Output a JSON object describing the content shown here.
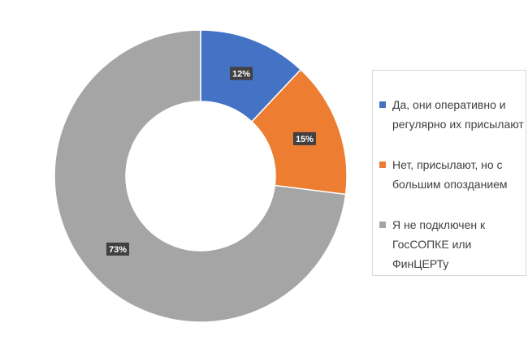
{
  "chart_data": {
    "type": "donut",
    "categories": [
      "Да, они оперативно и регулярно их присылают",
      "Нет, присылают, но с большим опозданием",
      "Я не подключен к ГосСОПКЕ или ФинЦЕРТу"
    ],
    "values": [
      12,
      15,
      73
    ],
    "value_labels": [
      "12%",
      "15%",
      "73%"
    ],
    "colors": [
      "#4472c4",
      "#ed7d31",
      "#a5a5a5"
    ],
    "legend": "right"
  }
}
